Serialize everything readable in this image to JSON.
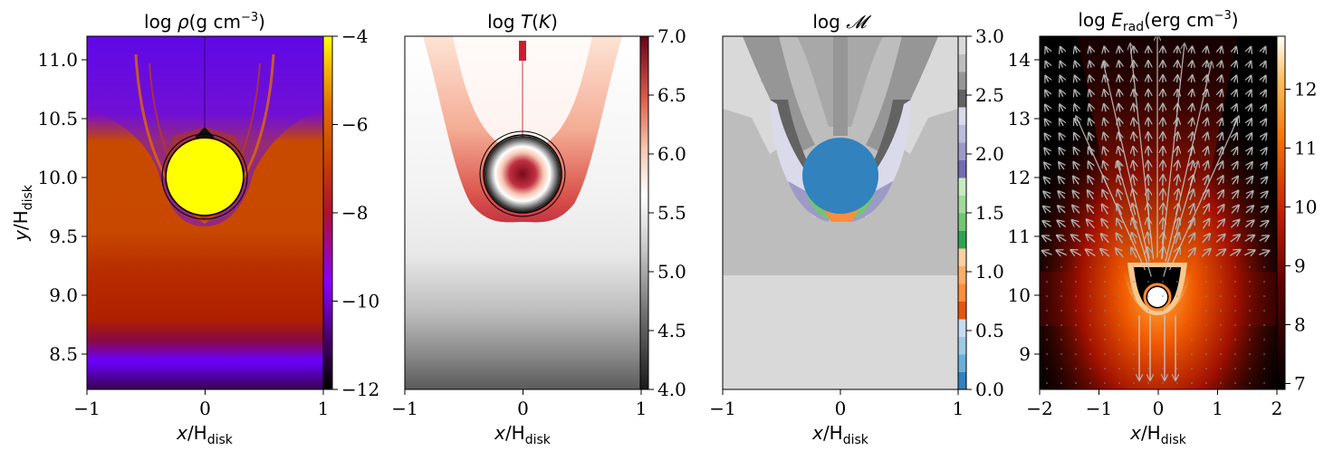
{
  "figure": {
    "x_label_italic": "x",
    "x_label_sub": "disk",
    "x_label_slash": "/H",
    "y_label_italic": "y",
    "y_label_slash": "/H",
    "y_label_sub": "disk"
  },
  "chart_data": [
    {
      "type": "heatmap",
      "title": "log ρ(g cm⁻³)",
      "title_parts": {
        "prefix": "log ",
        "var": "ρ",
        "open": "(g cm",
        "sup": "−3",
        "close": ")"
      },
      "xlabel": "x/H_disk",
      "ylabel": "y/H_disk",
      "xlim": [
        -1,
        1
      ],
      "ylim": [
        8.2,
        11.2
      ],
      "x_ticks": [
        -1,
        0,
        1
      ],
      "x_tick_labels": [
        "−1",
        "0",
        "1"
      ],
      "y_ticks": [
        8.5,
        9.0,
        9.5,
        10.0,
        10.5,
        11.0
      ],
      "y_tick_labels": [
        "8.5",
        "9.0",
        "9.5",
        "10.0",
        "10.5",
        "11.0"
      ],
      "colormap": "gnuplot",
      "colorbar_range": [
        -12,
        -4
      ],
      "colorbar_ticks": [
        -4,
        -6,
        -8,
        -10,
        -12
      ],
      "colorbar_tick_labels": [
        "−4",
        "−6",
        "−8",
        "−10",
        "−12"
      ],
      "object_center": [
        0,
        10.0
      ],
      "object_radius": 0.3,
      "colors": {
        "top": "#5c00ff",
        "mid": "#c84a00",
        "band": "#b02200",
        "bottom": "#4a0070",
        "core": "#ffff00"
      }
    },
    {
      "type": "heatmap",
      "title": "log T(K)",
      "title_parts": {
        "prefix": "log ",
        "var": "T",
        "open": "(",
        "var2": "K",
        "close": ")"
      },
      "xlabel": "x/H_disk",
      "xlim": [
        -1,
        1
      ],
      "x_ticks": [
        -1,
        0,
        1
      ],
      "x_tick_labels": [
        "−1",
        "0",
        "1"
      ],
      "colormap": "RdGy_r",
      "colorbar_range": [
        4.0,
        7.0
      ],
      "colorbar_ticks": [
        7.0,
        6.5,
        6.0,
        5.5,
        5.0,
        4.5,
        4.0
      ],
      "colorbar_tick_labels": [
        "7.0",
        "6.5",
        "6.0",
        "5.5",
        "5.0",
        "4.5",
        "4.0"
      ],
      "colors": {
        "hot": "#8b0a1f",
        "warm": "#e0563c",
        "white": "#f4f4f4",
        "cold": "#5a5a5a"
      }
    },
    {
      "type": "heatmap",
      "title": "log 𝓜",
      "title_parts": {
        "prefix": "log ",
        "var": "𝓜"
      },
      "xlabel": "x/H_disk",
      "xlim": [
        -1,
        1
      ],
      "x_ticks": [
        -1,
        0,
        1
      ],
      "x_tick_labels": [
        "−1",
        "0",
        "1"
      ],
      "colormap": "tab20c",
      "colorbar_range": [
        0.0,
        3.0
      ],
      "colorbar_ticks": [
        3.0,
        2.5,
        2.0,
        1.5,
        1.0,
        0.5,
        0.0
      ],
      "colorbar_tick_labels": [
        "3.0",
        "2.5",
        "2.0",
        "1.5",
        "1.0",
        "0.5",
        "0.0"
      ],
      "colorbar_segments": [
        "#3182bd",
        "#6baed6",
        "#9ecae1",
        "#c6dbef",
        "#e6550d",
        "#fd8d3c",
        "#fdae6b",
        "#fdd0a2",
        "#31a354",
        "#74c476",
        "#a1d99b",
        "#c7e9c0",
        "#756bb1",
        "#9e9ac8",
        "#bcbddc",
        "#dadaeb",
        "#636363",
        "#969696",
        "#bdbdbd",
        "#d9d9d9"
      ],
      "colors": {
        "core": "#3182bd",
        "upper": "#bdbdbd",
        "lower": "#d9d9d9"
      }
    },
    {
      "type": "heatmap",
      "title": "log E_rad(erg cm⁻³)",
      "title_parts": {
        "prefix": "log ",
        "var": "E",
        "sub": "rad",
        "open": "(erg cm",
        "sup": "−3",
        "close": ")"
      },
      "xlabel": "x/H_disk",
      "xlim": [
        -2,
        2
      ],
      "ylim": [
        8.4,
        14.4
      ],
      "x_ticks": [
        -2,
        -1,
        0,
        1,
        2
      ],
      "x_tick_labels": [
        "−2",
        "−1",
        "0",
        "1",
        "2"
      ],
      "y_ticks": [
        9,
        10,
        11,
        12,
        13,
        14
      ],
      "y_tick_labels": [
        "9",
        "10",
        "11",
        "12",
        "13",
        "14"
      ],
      "colormap": "gist_heat",
      "colorbar_range": [
        6.9,
        12.9
      ],
      "colorbar_ticks": [
        12,
        11,
        10,
        9,
        8,
        7
      ],
      "colorbar_tick_labels": [
        "12",
        "11",
        "10",
        "9",
        "8",
        "7"
      ],
      "overlay": "flux vectors (quiver)",
      "object_center": [
        0,
        10.0
      ],
      "colors": {
        "bg": "#000000",
        "glow": "#ff7a10",
        "core": "#ffffff",
        "arrow": "#b0b0b0"
      }
    }
  ]
}
